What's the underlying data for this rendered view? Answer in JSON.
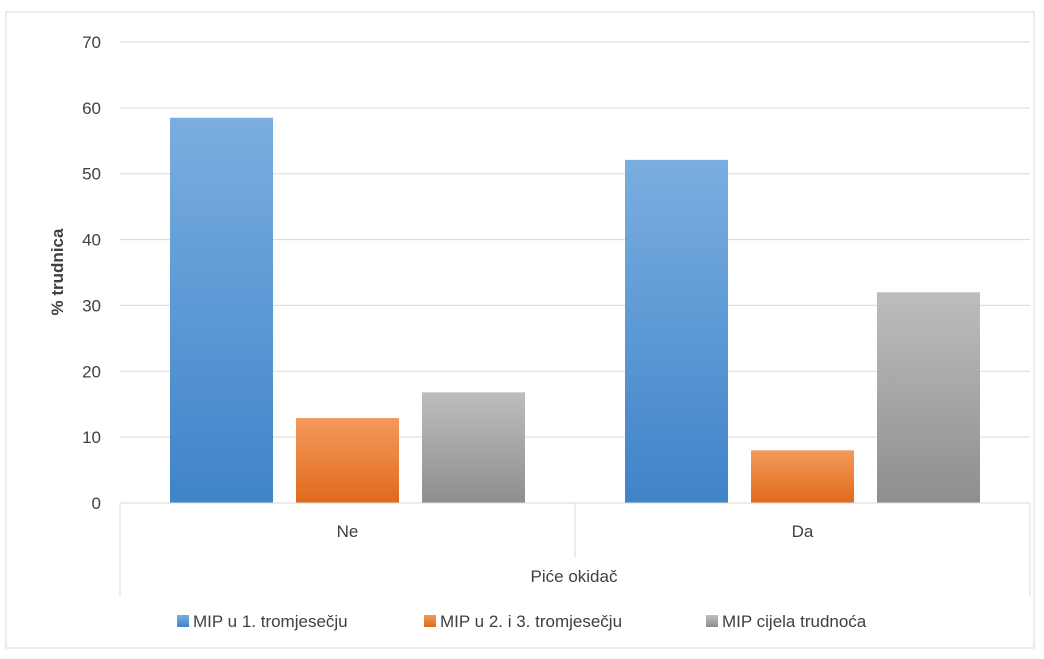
{
  "chart_data": {
    "type": "bar",
    "title": "",
    "xlabel": "Piće okidač",
    "ylabel": "% trudnica",
    "categories": [
      "Ne",
      "Da"
    ],
    "series": [
      {
        "name": "MIP u 1. tromjesečju",
        "values": [
          58.5,
          52.1
        ],
        "color": "#5B9BD5",
        "color_light": "#7aaee0",
        "color_dark": "#3f83c9"
      },
      {
        "name": "MIP u 2. i 3. tromjesečju",
        "values": [
          12.9,
          8.0
        ],
        "color": "#ED7D31",
        "color_light": "#f49a5c",
        "color_dark": "#e06a1c"
      },
      {
        "name": "MIP cijela trudnoća",
        "values": [
          16.8,
          32.0
        ],
        "color": "#A5A5A5",
        "color_light": "#bdbdbd",
        "color_dark": "#8e8e8e"
      }
    ],
    "ylim": [
      0,
      70
    ],
    "yticks": [
      0,
      10,
      20,
      30,
      40,
      50,
      60,
      70
    ],
    "grid": true,
    "legend_position": "bottom"
  }
}
